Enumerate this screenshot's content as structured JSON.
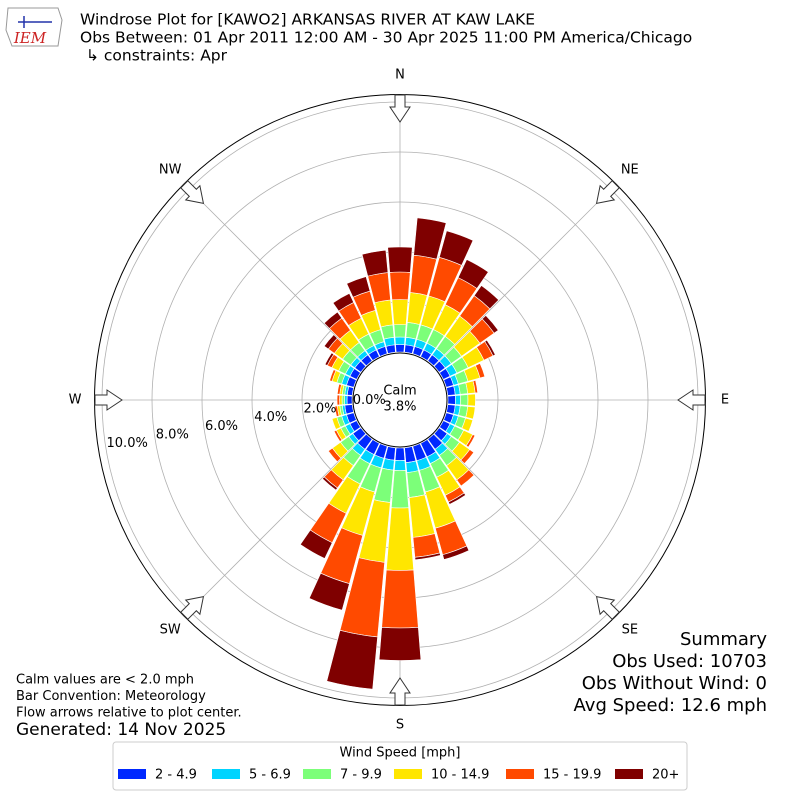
{
  "chart_data": {
    "type": "windrose",
    "logo": "IEM",
    "title": "Windrose Plot for [KAWO2] ARKANSAS RIVER  AT KAW LAKE",
    "subtitle": "Obs Between: 01 Apr 2011 12:00 AM - 30 Apr 2025 11:00 PM America/Chicago",
    "constraints": "↳ constraints: Apr",
    "x": [
      0,
      10,
      20,
      30,
      40,
      50,
      60,
      70,
      80,
      90,
      100,
      110,
      120,
      130,
      140,
      150,
      160,
      170,
      180,
      190,
      200,
      210,
      220,
      230,
      240,
      250,
      260,
      270,
      280,
      290,
      300,
      310,
      320,
      330,
      340,
      350
    ],
    "xticks": [
      {
        "value": 0,
        "label": "N"
      },
      {
        "value": 45,
        "label": "NE"
      },
      {
        "value": 90,
        "label": "E"
      },
      {
        "value": 135,
        "label": "SE"
      },
      {
        "value": 180,
        "label": "S"
      },
      {
        "value": 225,
        "label": "SW"
      },
      {
        "value": 270,
        "label": "W"
      },
      {
        "value": 315,
        "label": "NW"
      }
    ],
    "ylim": [
      0,
      10.3
    ],
    "yticks": [
      {
        "value": 0,
        "label": "0.0%"
      },
      {
        "value": 2,
        "label": "2.0%"
      },
      {
        "value": 4,
        "label": "4.0%"
      },
      {
        "value": 6,
        "label": "6.0%"
      },
      {
        "value": 8,
        "label": "8.0%"
      },
      {
        "value": 10,
        "label": "10.0%"
      }
    ],
    "grid": true,
    "calm": {
      "label": "Calm",
      "value": 3.8,
      "value_label": "3.8%"
    },
    "legend_title": "Wind Speed [mph]",
    "series": [
      {
        "name": "2 - 4.9",
        "color": "#0028ff",
        "values": [
          0.3,
          0.3,
          0.3,
          0.3,
          0.3,
          0.3,
          0.3,
          0.3,
          0.3,
          0.3,
          0.3,
          0.3,
          0.3,
          0.4,
          0.5,
          0.6,
          0.6,
          0.6,
          0.5,
          0.5,
          0.5,
          0.5,
          0.5,
          0.4,
          0.3,
          0.3,
          0.3,
          0.2,
          0.2,
          0.3,
          0.3,
          0.3,
          0.3,
          0.3,
          0.3,
          0.3
        ]
      },
      {
        "name": "5 - 6.9",
        "color": "#00d4ff",
        "values": [
          0.3,
          0.3,
          0.3,
          0.3,
          0.3,
          0.3,
          0.3,
          0.2,
          0.2,
          0.2,
          0.2,
          0.2,
          0.2,
          0.2,
          0.3,
          0.3,
          0.4,
          0.4,
          0.4,
          0.4,
          0.4,
          0.4,
          0.3,
          0.2,
          0.2,
          0.2,
          0.1,
          0.1,
          0.1,
          0.2,
          0.2,
          0.2,
          0.2,
          0.2,
          0.2,
          0.3
        ]
      },
      {
        "name": "7 - 9.9",
        "color": "#7cff79",
        "values": [
          0.5,
          0.6,
          0.6,
          0.6,
          0.6,
          0.5,
          0.5,
          0.4,
          0.3,
          0.3,
          0.3,
          0.3,
          0.4,
          0.4,
          0.5,
          0.6,
          0.9,
          1.0,
          1.5,
          1.3,
          1.0,
          0.9,
          0.5,
          0.4,
          0.2,
          0.2,
          0.1,
          0.1,
          0.1,
          0.2,
          0.3,
          0.4,
          0.4,
          0.5,
          0.5,
          0.5
        ]
      },
      {
        "name": "10 - 14.9",
        "color": "#ffe600",
        "values": [
          1.0,
          1.2,
          1.2,
          1.1,
          1.0,
          0.9,
          0.7,
          0.5,
          0.3,
          0.3,
          0.3,
          0.3,
          0.4,
          0.5,
          0.7,
          0.8,
          1.5,
          1.6,
          2.5,
          2.4,
          1.8,
          1.3,
          0.7,
          0.4,
          0.2,
          0.2,
          0.1,
          0.1,
          0.1,
          0.2,
          0.3,
          0.4,
          0.6,
          0.7,
          0.8,
          1.0
        ]
      },
      {
        "name": "15 - 19.9",
        "color": "#ff4a00",
        "values": [
          1.1,
          1.5,
          1.6,
          1.2,
          1.0,
          0.7,
          0.4,
          0.2,
          0.1,
          0.0,
          0.0,
          0.0,
          0.1,
          0.2,
          0.3,
          0.3,
          1.1,
          0.8,
          2.3,
          3.0,
          2.0,
          1.3,
          0.4,
          0.2,
          0.1,
          0.0,
          0.1,
          0.1,
          0.1,
          0.1,
          0.2,
          0.3,
          0.6,
          0.7,
          0.8,
          1.1
        ]
      },
      {
        "name": "20+",
        "color": "#7f0000",
        "values": [
          1.0,
          1.5,
          1.1,
          0.8,
          0.5,
          0.2,
          0.1,
          0.0,
          0.0,
          0.0,
          0.0,
          0.0,
          0.0,
          0.0,
          0.0,
          0.1,
          0.2,
          0.1,
          1.3,
          2.1,
          1.1,
          0.7,
          0.1,
          0.0,
          0.0,
          0.0,
          0.0,
          0.0,
          0.0,
          0.0,
          0.1,
          0.2,
          0.3,
          0.4,
          0.6,
          0.9
        ]
      }
    ],
    "summary": [
      "Summary",
      "Obs Used: 10703",
      "Obs Without Wind: 0",
      "Avg Speed: 12.6 mph"
    ],
    "notes": [
      "Calm values are < 2.0 mph",
      "Bar Convention: Meteorology",
      "Flow arrows relative to plot center."
    ],
    "generated": "Generated: 14 Nov 2025"
  }
}
